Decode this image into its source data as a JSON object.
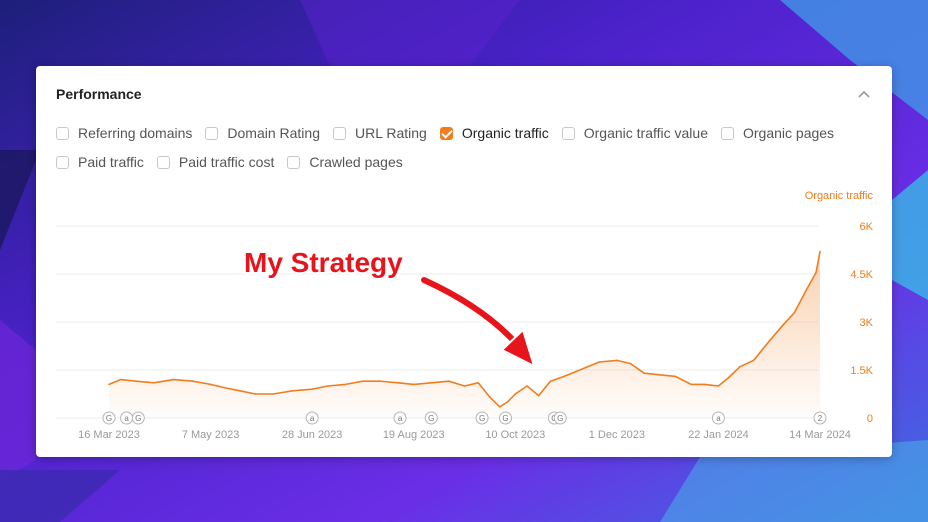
{
  "card": {
    "title": "Performance"
  },
  "filters": [
    {
      "label": "Referring domains",
      "checked": false
    },
    {
      "label": "Domain Rating",
      "checked": false
    },
    {
      "label": "URL Rating",
      "checked": false
    },
    {
      "label": "Organic traffic",
      "checked": true
    },
    {
      "label": "Organic traffic value",
      "checked": false
    },
    {
      "label": "Organic pages",
      "checked": false
    },
    {
      "label": "Paid traffic",
      "checked": false
    },
    {
      "label": "Paid traffic cost",
      "checked": false
    },
    {
      "label": "Crawled pages",
      "checked": false
    }
  ],
  "annotation": {
    "text": "My Strategy"
  },
  "colors": {
    "accent": "#f07d1e",
    "annotation": "#e8141c"
  },
  "chart_data": {
    "type": "area",
    "title": "",
    "ylabel": "Organic traffic",
    "ylim": [
      0,
      6000
    ],
    "yticks": [
      "6K",
      "4.5K",
      "3K",
      "1.5K",
      "0"
    ],
    "ytick_values": [
      6000,
      4500,
      3000,
      1500,
      0
    ],
    "xticks": [
      "16 Mar 2023",
      "7 May 2023",
      "28 Jun 2023",
      "19 Aug 2023",
      "10 Oct 2023",
      "1 Dec 2023",
      "22 Jan 2024",
      "14 Mar 2024"
    ],
    "x_start": "2023-03-16",
    "x_end": "2024-03-14",
    "series": [
      {
        "name": "Organic traffic",
        "x": [
          "2023-03-16",
          "2023-03-22",
          "2023-03-30",
          "2023-04-08",
          "2023-04-18",
          "2023-04-28",
          "2023-05-07",
          "2023-05-14",
          "2023-05-22",
          "2023-05-30",
          "2023-06-08",
          "2023-06-18",
          "2023-06-28",
          "2023-07-06",
          "2023-07-15",
          "2023-07-24",
          "2023-08-02",
          "2023-08-11",
          "2023-08-19",
          "2023-08-28",
          "2023-09-06",
          "2023-09-14",
          "2023-09-21",
          "2023-09-27",
          "2023-10-02",
          "2023-10-06",
          "2023-10-10",
          "2023-10-16",
          "2023-10-22",
          "2023-10-28",
          "2023-11-04",
          "2023-11-10",
          "2023-11-16",
          "2023-11-22",
          "2023-12-01",
          "2023-12-08",
          "2023-12-15",
          "2023-12-23",
          "2023-12-31",
          "2024-01-08",
          "2024-01-15",
          "2024-01-22",
          "2024-01-27",
          "2024-02-02",
          "2024-02-09",
          "2024-02-17",
          "2024-02-24",
          "2024-03-01",
          "2024-03-07",
          "2024-03-12",
          "2024-03-14"
        ],
        "y": [
          1050,
          1200,
          1150,
          1100,
          1200,
          1150,
          1050,
          950,
          850,
          750,
          750,
          850,
          900,
          1000,
          1050,
          1150,
          1150,
          1100,
          1050,
          1100,
          1150,
          1000,
          1100,
          650,
          350,
          500,
          750,
          1000,
          700,
          1150,
          1300,
          1450,
          1600,
          1750,
          1800,
          1700,
          1400,
          1350,
          1300,
          1050,
          1050,
          1000,
          1250,
          1600,
          1800,
          2400,
          2900,
          3300,
          4000,
          4550,
          5200
        ]
      }
    ]
  },
  "event_markers": [
    {
      "date": "2023-03-16",
      "label": "G"
    },
    {
      "date": "2023-03-25",
      "label": "a"
    },
    {
      "date": "2023-03-31",
      "label": "G"
    },
    {
      "date": "2023-06-28",
      "label": "a"
    },
    {
      "date": "2023-08-12",
      "label": "a"
    },
    {
      "date": "2023-08-28",
      "label": "G"
    },
    {
      "date": "2023-09-23",
      "label": "G"
    },
    {
      "date": "2023-10-05",
      "label": "G"
    },
    {
      "date": "2023-10-30",
      "label": "G"
    },
    {
      "date": "2023-11-02",
      "label": "G"
    },
    {
      "date": "2024-01-22",
      "label": "a"
    },
    {
      "date": "2024-03-14",
      "label": "2"
    }
  ]
}
